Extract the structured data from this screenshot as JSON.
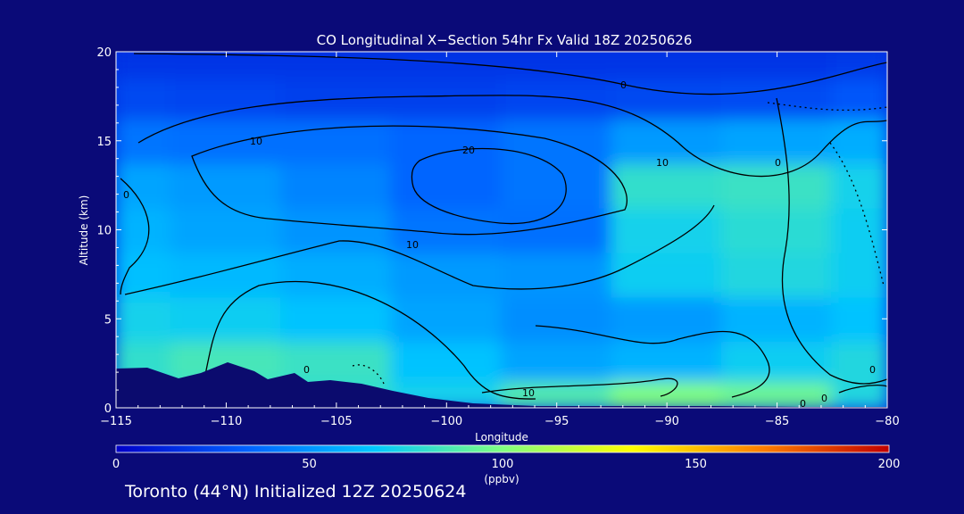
{
  "footer": "Toronto (44°N) Initialized 12Z 20250624",
  "colors": {
    "background": "#0a0a78",
    "terrain": "#0b0b6e",
    "contour": "#000000",
    "axis": "#ffffff"
  },
  "chart_data": {
    "type": "heatmap",
    "title": "CO Longitudinal X−Section 54hr  Fx Valid 18Z 20250626",
    "xlabel": "Longitude",
    "ylabel": "Altitude (km)",
    "xlim": [
      -115,
      -80
    ],
    "ylim": [
      0,
      20
    ],
    "x_ticks": [
      "−115",
      "−110",
      "−105",
      "−100",
      "−95",
      "−90",
      "−85",
      "−80"
    ],
    "y_ticks": [
      "0",
      "5",
      "10",
      "15",
      "20"
    ],
    "colorbar": {
      "label": "(ppbv)",
      "range": [
        0,
        200
      ],
      "ticks": [
        "0",
        "50",
        "100",
        "150",
        "200"
      ],
      "colorscale": [
        "#0000c8",
        "#0060ff",
        "#00c8ff",
        "#80ff80",
        "#ffff00",
        "#ff8000",
        "#c00000"
      ]
    },
    "contour_labels": [
      "0",
      "10",
      "20",
      "0",
      "10",
      "0",
      "10",
      "0",
      "0",
      "10",
      "0",
      "0"
    ],
    "lon": [
      -115,
      -110,
      -105,
      -100,
      -95,
      -90,
      -85,
      -80
    ],
    "alt": [
      0.5,
      2.5,
      5,
      7.5,
      10,
      12.5,
      15,
      17.5,
      19.5
    ],
    "values": [
      [
        75,
        80,
        80,
        72,
        88,
        100,
        95,
        75
      ],
      [
        80,
        85,
        82,
        65,
        55,
        60,
        70,
        75
      ],
      [
        72,
        70,
        65,
        55,
        48,
        52,
        60,
        65
      ],
      [
        64,
        62,
        58,
        52,
        50,
        70,
        75,
        70
      ],
      [
        60,
        55,
        50,
        40,
        38,
        72,
        78,
        70
      ],
      [
        55,
        52,
        45,
        35,
        40,
        80,
        82,
        72
      ],
      [
        40,
        38,
        38,
        35,
        40,
        52,
        55,
        58
      ],
      [
        25,
        24,
        22,
        22,
        24,
        25,
        26,
        30
      ],
      [
        18,
        18,
        18,
        18,
        18,
        18,
        18,
        20
      ]
    ]
  }
}
